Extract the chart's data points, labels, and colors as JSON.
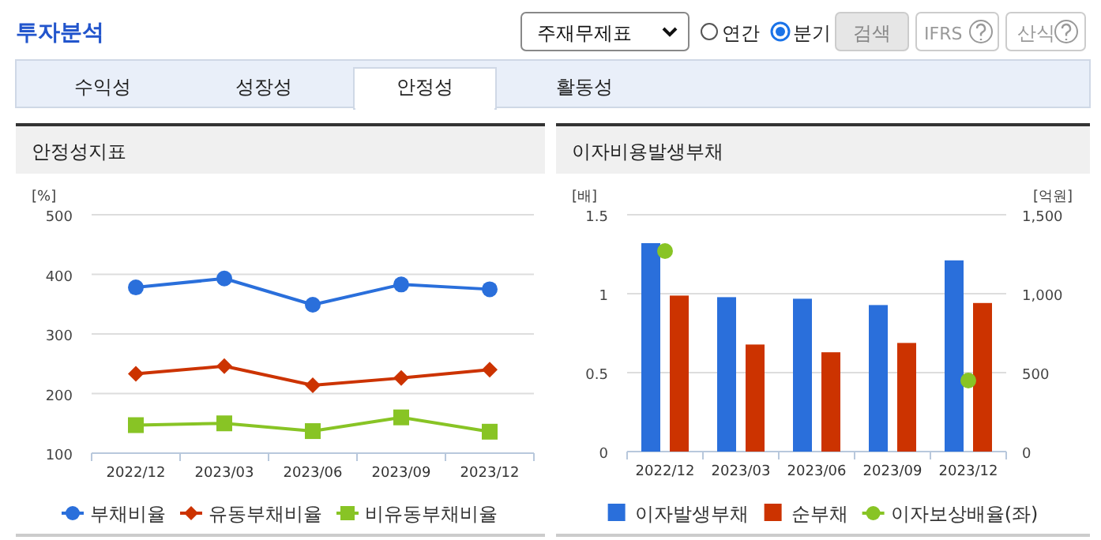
{
  "chart_data": [
    {
      "type": "line",
      "title": "안정성지표",
      "ylabel": "[%]",
      "categories": [
        "2022/12",
        "2023/03",
        "2023/06",
        "2023/09",
        "2023/12"
      ],
      "series": [
        {
          "name": "부채비율",
          "color": "#2a6fdb",
          "marker": "circle",
          "values": [
            378,
            393,
            349,
            383,
            375
          ]
        },
        {
          "name": "유동부채비율",
          "color": "#cc3300",
          "marker": "diamond",
          "values": [
            233,
            246,
            214,
            226,
            240
          ]
        },
        {
          "name": "비유동부채비율",
          "color": "#88c425",
          "marker": "square",
          "values": [
            147,
            150,
            137,
            160,
            136
          ]
        }
      ],
      "ylim": [
        100,
        500
      ],
      "yticks": [
        100,
        200,
        300,
        400,
        500
      ],
      "grid": "y",
      "legend": "bottom",
      "annotations": [
        "투자분석",
        "주재무제표",
        "연간",
        "분기",
        "검색",
        "IFRS",
        "산식",
        "수익성",
        "성장성",
        "안정성",
        "활동성"
      ]
    },
    {
      "type": "bar",
      "title": "이자비용발생부채",
      "ylabel": "[배]",
      "y2label": "[억원]",
      "categories": [
        "2022/12",
        "2023/03",
        "2023/06",
        "2023/09",
        "2023/12"
      ],
      "series": [
        {
          "name": "이자발생부채",
          "color": "#2a6fdb",
          "axis": "y2",
          "values": [
            1320,
            978,
            968,
            928,
            1211
          ]
        },
        {
          "name": "순부채",
          "color": "#cc3300",
          "axis": "y2",
          "values": [
            988,
            678,
            629,
            688,
            941
          ]
        },
        {
          "name": "이자보상배율(좌)",
          "type": "scatter",
          "color": "#88c425",
          "axis": "y",
          "marker": "circle",
          "values": [
            1.27,
            null,
            null,
            null,
            0.45
          ]
        }
      ],
      "ylim": [
        0,
        1.5
      ],
      "yticks": [
        0,
        0.5,
        1,
        1.5
      ],
      "y2lim": [
        0,
        1500
      ],
      "y2ticks": [
        0,
        {
          "value": 500,
          "label": "500"
        },
        {
          "value": 1000,
          "label": "1,000"
        },
        {
          "value": 1500,
          "label": "1,500"
        }
      ],
      "grid": "y",
      "legend": "bottom"
    }
  ]
}
